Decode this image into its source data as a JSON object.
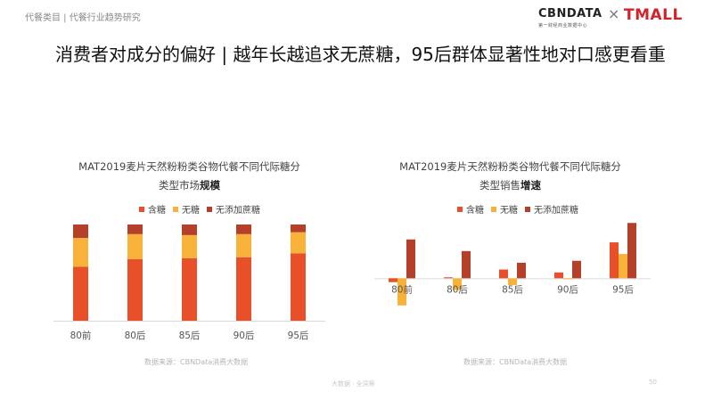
{
  "breadcrumb": "代餐类目 | 代餐行业趋势研究",
  "logo": {
    "cbn": "CBNDATA",
    "cbn_sub": "第一财经商业数据中心",
    "times": "×",
    "tmall": "TMALL"
  },
  "title": "消费者对成分的偏好 | 越年长越追求无蔗糖，95后群体显著性地对口感更看重",
  "colors": {
    "sugar": "#e8502a",
    "no_sugar": "#f8b23a",
    "no_added_sucrose": "#b5402a"
  },
  "chart_data": [
    {
      "type": "bar",
      "stacked": true,
      "title_line1": "MAT2019麦片天然粉粉类谷物代餐不同代际糖分",
      "title_line2_prefix": "类型市场",
      "title_line2_bold": "规模",
      "categories": [
        "80前",
        "80后",
        "85后",
        "90后",
        "95后"
      ],
      "series": [
        {
          "name": "含糖",
          "values": [
            0.56,
            0.64,
            0.65,
            0.66,
            0.7
          ]
        },
        {
          "name": "无糖",
          "values": [
            0.3,
            0.26,
            0.24,
            0.24,
            0.22
          ]
        },
        {
          "name": "无添加蔗糖",
          "values": [
            0.14,
            0.1,
            0.11,
            0.1,
            0.08
          ]
        }
      ],
      "ylim": [
        0,
        1
      ],
      "legend_position": "top",
      "source": "数据来源：CBNData消费大数据"
    },
    {
      "type": "bar",
      "stacked": false,
      "title_line1": "MAT2019麦片天然粉粉类谷物代餐不同代际糖分",
      "title_line2_prefix": "类型销售",
      "title_line2_bold": "增速",
      "categories": [
        "80前",
        "80后",
        "85后",
        "90后",
        "95后"
      ],
      "series": [
        {
          "name": "含糖",
          "values": [
            -4,
            1,
            9,
            6,
            37
          ]
        },
        {
          "name": "无糖",
          "values": [
            -28,
            -12,
            -7,
            -1,
            25
          ]
        },
        {
          "name": "无添加蔗糖",
          "values": [
            40,
            28,
            16,
            18,
            57
          ]
        }
      ],
      "ylim": [
        -30,
        60
      ],
      "legend_position": "top",
      "source": "数据来源：CBNData消费大数据"
    }
  ],
  "footer": "大数据 · 全洞察",
  "page_number": "50"
}
